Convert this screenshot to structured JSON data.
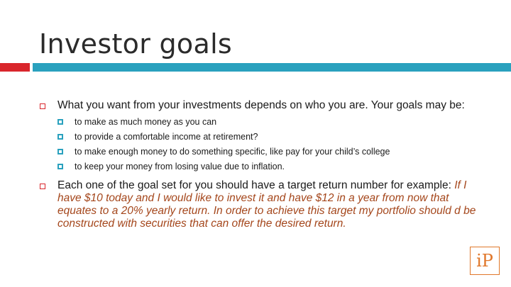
{
  "slide": {
    "title": "Investor goals",
    "colors": {
      "accent_red": "#d9262c",
      "accent_teal": "#2aa1be",
      "emphasis": "#a4461b",
      "logo": "#e0772a"
    },
    "bullets": [
      {
        "text": "What you want from your investments depends on who you are. Your goals may be:",
        "sub": [
          "to make as much money as you can",
          "to provide a comfortable income at retirement?",
          "to make enough money to do something specific, like pay for your child’s college",
          "to keep your money from losing value due to inflation."
        ]
      },
      {
        "text": "Each one of the goal set for you should have a target return number for example: ",
        "emphasis": "If I have $10 today and I would like to invest it and have $12 in a year from now that equates to a 20% yearly return. In order to achieve this target my portfolio should d be constructed with securities that can offer the desired return."
      }
    ],
    "logo_text": "iP"
  }
}
